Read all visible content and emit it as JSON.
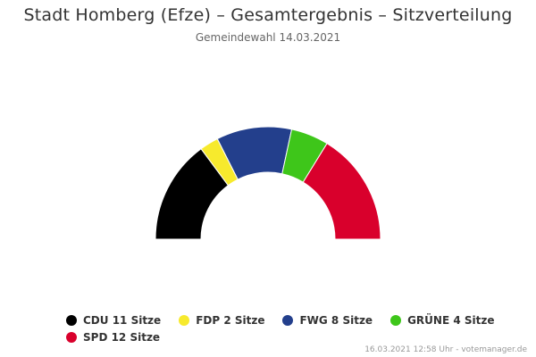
{
  "chart_data": {
    "type": "pie",
    "variant": "semicircle",
    "title": "Stadt Homberg (Efze) – Gesamtergebnis – Sitzverteilung",
    "subtitle": "Gemeindewahl 14.03.2021",
    "categories": [
      "CDU",
      "FDP",
      "FWG",
      "GRÜNE",
      "SPD"
    ],
    "values": [
      11,
      2,
      8,
      4,
      12
    ],
    "unit": "Sitze",
    "colors": [
      "#000000",
      "#f7ea2d",
      "#233f8c",
      "#3ec61a",
      "#d9002c"
    ],
    "legend": [
      "CDU 11 Sitze",
      "FDP 2 Sitze",
      "FWG 8 Sitze",
      "GRÜNE 4 Sitze",
      "SPD 12 Sitze"
    ],
    "legend_position": "bottom"
  },
  "credits": "16.03.2021 12:58 Uhr - votemanager.de"
}
